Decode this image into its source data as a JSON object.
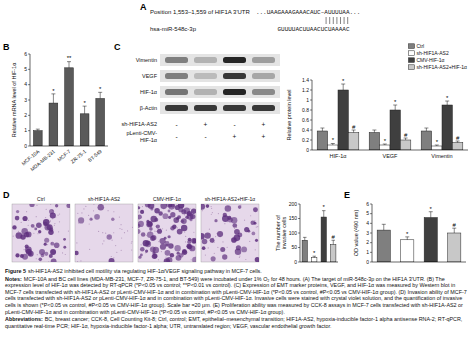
{
  "panel_a": {
    "letter": "A",
    "target_label": "Position 1,553–1,559 of HIF1A 3'UTR",
    "target_seq": "...UAAGAAAGAAACAUC–AUUUUAA...",
    "mirna_label": "hsa-miR-548c-3p",
    "mirna_seq": "GUUUUACUUAACUCUAAAAC"
  },
  "blot": {
    "proteins": [
      "Vimentin",
      "VEGF",
      "HIF-1α",
      "β-Actin"
    ],
    "conditions": [
      {
        "label": "sh-HIF1A-AS2",
        "signs": [
          "-",
          "+",
          "-",
          "+"
        ]
      },
      {
        "label": "pLenti-CMV-HIF-1α",
        "signs": [
          "-",
          "-",
          "+",
          "+"
        ]
      }
    ]
  },
  "chart_data": [
    {
      "type": "bar",
      "panel": "B",
      "y_label": "Relative mRNA level of HIF-1α",
      "categories": [
        "MCF-10A",
        "MDA-MB-231",
        "MCF-7",
        "ZR-75-1",
        "BT-549"
      ],
      "values": [
        1,
        2.8,
        5.1,
        2.1,
        3.1
      ],
      "errors": [
        0.1,
        0.6,
        0.4,
        0.5,
        0.4
      ],
      "annotations": [
        null,
        "*",
        "**",
        "*",
        "*"
      ],
      "color": "#5a5a5a",
      "ylim": [
        0,
        6
      ],
      "yticks": [
        0,
        1,
        2,
        3,
        4,
        5,
        6
      ],
      "grid": false
    },
    {
      "type": "bar",
      "panel": "C",
      "y_label": "Relative protein level",
      "categories": [
        "HIF-1α",
        "VEGF",
        "Vimentin"
      ],
      "series": [
        {
          "name": "Ctrl",
          "color": "#7f7f7f",
          "values": [
            0.38,
            0.35,
            0.38
          ],
          "errors": [
            0.06,
            0.05,
            0.06
          ],
          "annotations": [
            null,
            null,
            null
          ]
        },
        {
          "name": "sh-HIF1A-AS2",
          "color": "#ffffff",
          "values": [
            0.1,
            0.1,
            0.08
          ],
          "errors": [
            0.03,
            0.02,
            0.02
          ],
          "annotations": [
            "*",
            "*",
            "*"
          ]
        },
        {
          "name": "CMV-HIF-1α",
          "color": "#3f3f3f",
          "values": [
            1.2,
            0.8,
            0.9
          ],
          "errors": [
            0.12,
            0.1,
            0.08
          ],
          "annotations": [
            "*",
            "*",
            "*"
          ]
        },
        {
          "name": "sh-HIF1A-AS2+HIF-1α",
          "color": "#c8c8c8",
          "values": [
            0.35,
            0.2,
            0.15
          ],
          "errors": [
            0.05,
            0.04,
            0.03
          ],
          "annotations": [
            "#",
            "#",
            "#"
          ]
        }
      ],
      "ylim": [
        0,
        1.4
      ],
      "yticks": [
        0,
        0.2,
        0.4,
        0.6,
        0.8,
        1,
        1.2,
        1.4
      ],
      "legend": "top-right",
      "grid": false
    },
    {
      "type": "bar",
      "panel": "D",
      "y_label": "The number of invasive cells",
      "categories": [
        "Ctrl",
        "sh-HIF1A-AS2",
        "CMV-HIF-1α",
        "sh-HIF1A-AS2+HIF-1α"
      ],
      "values": [
        75,
        15,
        155,
        60
      ],
      "errors": [
        10,
        5,
        22,
        15
      ],
      "annotations": [
        null,
        "*",
        "*",
        "#"
      ],
      "colors": [
        "#7f7f7f",
        "#ffffff",
        "#3f3f3f",
        "#c8c8c8"
      ],
      "ylim": [
        0,
        200
      ],
      "yticks": [
        0,
        50,
        100,
        150,
        200
      ],
      "tick_labels": "y",
      "grid": false
    },
    {
      "type": "bar",
      "panel": "E",
      "y_label": "OD value (490 nm)",
      "categories": [
        null,
        null,
        null,
        null
      ],
      "values": [
        3.3,
        2.3,
        4.6,
        3.0
      ],
      "errors": [
        0.6,
        0.3,
        0.6,
        0.5
      ],
      "annotations": [
        null,
        "*",
        "*",
        "#"
      ],
      "colors": [
        "#7f7f7f",
        "#ffffff",
        "#3f3f3f",
        "#c8c8c8"
      ],
      "ylim": [
        0,
        6
      ],
      "yticks": [
        0,
        1,
        2,
        3,
        4,
        5,
        6
      ],
      "tick_labels": "y",
      "grid": false
    }
  ],
  "caption": {
    "title_lead": "Figure 5",
    "title": "sh-HIF1A-AS2 inhibited cell motility via regulating HIF-1α/VEGF signaling pathway in MCF-7 cells.",
    "notes_lead": "Notes:",
    "notes": "MCF-10A and BC cell lines (MDA-MB-231, MCF-7, ZR-75-1, and BT-549) were incubated under 1% O₂ for 48 hours. (A) The target of miR-548c-3p on the HIF1A 3'UTR. (B) The expression level of HIF-1α was detected by RT-qPCR (*P<0.05 vs control; **P<0.01 vs control). (C) Expression of EMT marker proteins, VEGF, and HIF-1α was measured by Western blot in MCF-7 cells transfected with sh-HIF1A-AS2 or pLenti-CMV-HIF-1α and in combination with pLenti-CMV-HIF-1α (*P<0.05 vs control, #P<0.05 vs CMV-HIF-1α group). (D) Invasion ability of MCF-7 cells transfected with sh-HIF1A-AS2 or pLenti-CMV-HIF-1α and in combination with pLenti-CMV-HIF-1α. Invasive cells were stained with crystal violet solution, and the quantification of invasive cells is shown (*P<0.05 vs control, #P<0.05 vs CMV-HIF-1α group). Scale bar =20 μm. (E) Proliferation ability was measured by CCK-8 assays in MCF-7 cells transfected with sh-HIF1A-AS2 or pLenti-CMV-HIF-1α and in combination with pLenti-CMV-HIF-1α (*P<0.05 vs control, #P<0.05 vs CMV-HIF-1α group).",
    "abbr_lead": "Abbreviations:",
    "abbr": "BC, breast cancer; CCK-8, Cell Counting Kit-8; Ctrl, control; EMT, epithelial–mesenchymal transition; HIF1A-AS2, hypoxia-inducible factor-1 alpha antisense RNA-2; RT-qPCR, quantitative real-time PCR; HIF-1α, hypoxia-inducible factor-1 alpha; UTR, untranslated region; VEGF, vascular endothelial growth factor."
  }
}
